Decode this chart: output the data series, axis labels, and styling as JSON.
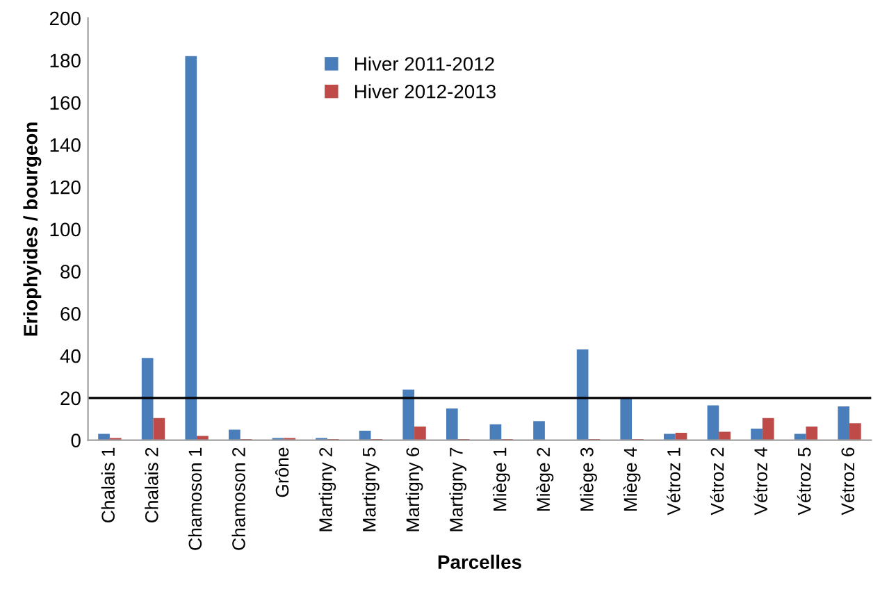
{
  "chart_data": {
    "type": "bar",
    "xlabel": "Parcelles",
    "ylabel": "Eriophyides / bourgeon",
    "categories": [
      "Chalais 1",
      "Chalais 2",
      "Chamoson 1",
      "Chamoson 2",
      "Grône",
      "Martigny 2",
      "Martigny 5",
      "Martigny 6",
      "Martigny 7",
      "Miège 1",
      "Miège 2",
      "Miège 3",
      "Miège 4",
      "Vétroz 1",
      "Vétroz 2",
      "Vétroz 4",
      "Vétroz 5",
      "Vétroz 6"
    ],
    "series": [
      {
        "name": "Hiver 2011-2012",
        "color": "#4a7ebb",
        "values": [
          3,
          39,
          182,
          5,
          1,
          1,
          4.5,
          24,
          15,
          7.5,
          9,
          43,
          20,
          3,
          16.5,
          5.5,
          3,
          16
        ]
      },
      {
        "name": "Hiver 2012-2013",
        "color": "#be4b48",
        "values": [
          1,
          10.5,
          2,
          0.5,
          1,
          0.5,
          0.5,
          6.5,
          0.5,
          0.5,
          0,
          0.5,
          0.5,
          3.5,
          4,
          10.5,
          6.5,
          8
        ]
      }
    ],
    "ylim": [
      0,
      200
    ],
    "yticks": [
      0,
      20,
      40,
      60,
      80,
      100,
      120,
      140,
      160,
      180,
      200
    ],
    "ref_lines": [
      {
        "axis": "y",
        "value": 20,
        "color": "#000000"
      }
    ],
    "legend": "top",
    "grid": false
  }
}
